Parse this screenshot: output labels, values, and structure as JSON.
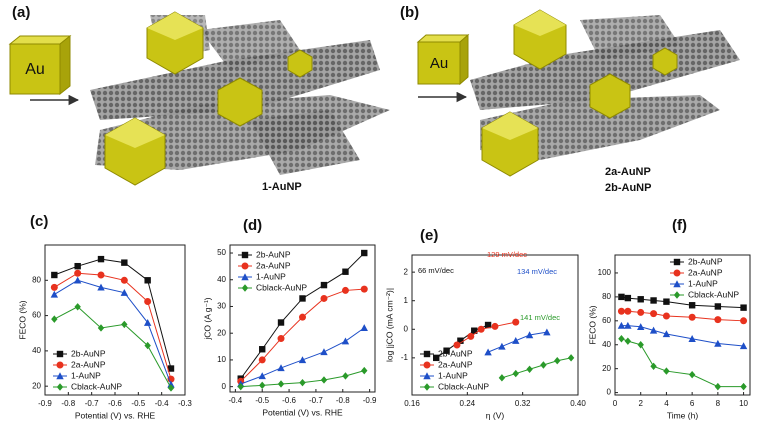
{
  "top_panels": [
    {
      "label": "(a)",
      "cube": "Au",
      "products": [
        "1-AuNP"
      ]
    },
    {
      "label": "(b)",
      "cube": "Au",
      "products": [
        "2a-AuNP",
        "2b-AuNP"
      ]
    }
  ],
  "chart_data": [
    {
      "type": "line",
      "label": "(c)",
      "xlabel": "Potential (V) vs. RHE",
      "ylabel": "FECO (%)",
      "x": [
        -0.86,
        -0.76,
        -0.66,
        -0.56,
        -0.46,
        -0.36
      ],
      "xlim": [
        -0.9,
        -0.3
      ],
      "xticks": [
        -0.9,
        -0.8,
        -0.7,
        -0.6,
        -0.5,
        -0.4,
        -0.3
      ],
      "ylim": [
        15,
        100
      ],
      "yticks": [
        20,
        40,
        60,
        80
      ],
      "legend": "lower left",
      "series": [
        {
          "name": "2b-AuNP",
          "color": "#111111",
          "marker": "square",
          "values": [
            83,
            88,
            92,
            90,
            80,
            30
          ]
        },
        {
          "name": "2a-AuNP",
          "color": "#e8321e",
          "marker": "circle",
          "values": [
            76,
            84,
            83,
            80,
            68,
            24
          ]
        },
        {
          "name": "1-AuNP",
          "color": "#1e4fc8",
          "marker": "triangle",
          "values": [
            72,
            80,
            76,
            73,
            56,
            21
          ]
        },
        {
          "name": "Cblack-AuNP",
          "color": "#2a9a2a",
          "marker": "diamond",
          "values": [
            58,
            65,
            53,
            55,
            43,
            19
          ]
        }
      ]
    },
    {
      "type": "line",
      "label": "(d)",
      "xlabel": "Potential (V) vs. RHE",
      "ylabel": "jCO (A g⁻¹)",
      "x": [
        -0.42,
        -0.5,
        -0.57,
        -0.65,
        -0.73,
        -0.81,
        -0.88
      ],
      "xlim": [
        -0.38,
        -0.92
      ],
      "xticks": [
        -0.4,
        -0.5,
        -0.6,
        -0.7,
        -0.8,
        -0.9
      ],
      "ylim": [
        -2,
        53
      ],
      "yticks": [
        0,
        10,
        20,
        30,
        40,
        50
      ],
      "legend": "upper left",
      "series": [
        {
          "name": "2b-AuNP",
          "color": "#111111",
          "marker": "square",
          "values": [
            3,
            14,
            24,
            33,
            38,
            43,
            50
          ]
        },
        {
          "name": "2a-AuNP",
          "color": "#e8321e",
          "marker": "circle",
          "values": [
            2,
            10,
            18,
            26,
            33,
            36,
            36.5
          ]
        },
        {
          "name": "1-AuNP",
          "color": "#1e4fc8",
          "marker": "triangle",
          "values": [
            1,
            4,
            7,
            10,
            13,
            17,
            22
          ]
        },
        {
          "name": "Cblack-AuNP",
          "color": "#2a9a2a",
          "marker": "diamond",
          "values": [
            0,
            0.5,
            1,
            1.5,
            2.5,
            4,
            6
          ]
        }
      ]
    },
    {
      "type": "line",
      "label": "(e)",
      "xlabel": "η (V)",
      "ylabel": "log |jCO (mA cm⁻²)|",
      "xlim": [
        0.16,
        0.4
      ],
      "xticks": [
        0.16,
        0.24,
        0.32,
        {
          "value": 0.4,
          "label": "0.40"
        }
      ],
      "ylim": [
        -2.3,
        2.6
      ],
      "yticks": [
        -1,
        0,
        1,
        2
      ],
      "legend": "lower left",
      "annotations": [
        {
          "text": "66 mV/dec",
          "color": "#111111"
        },
        {
          "text": "129 mV/dec",
          "color": "#e8321e"
        },
        {
          "text": "134 mV/dec",
          "color": "#1e4fc8"
        },
        {
          "text": "141 mV/dec",
          "color": "#2a9a2a"
        }
      ],
      "series": [
        {
          "name": "2b-AuNP",
          "color": "#111111",
          "marker": "square",
          "x": [
            0.195,
            0.21,
            0.23,
            0.25,
            0.27
          ],
          "values": [
            -1.0,
            -0.75,
            -0.4,
            -0.05,
            0.15
          ]
        },
        {
          "name": "2a-AuNP",
          "color": "#e8321e",
          "marker": "circle",
          "x": [
            0.225,
            0.245,
            0.26,
            0.28,
            0.31
          ],
          "values": [
            -0.55,
            -0.25,
            0.0,
            0.1,
            0.25
          ]
        },
        {
          "name": "1-AuNP",
          "color": "#1e4fc8",
          "marker": "triangle",
          "x": [
            0.27,
            0.29,
            0.31,
            0.33,
            0.355
          ],
          "values": [
            -0.8,
            -0.6,
            -0.4,
            -0.2,
            -0.1
          ]
        },
        {
          "name": "Cblack-AuNP",
          "color": "#2a9a2a",
          "marker": "diamond",
          "x": [
            0.29,
            0.31,
            0.33,
            0.35,
            0.37,
            0.39
          ],
          "values": [
            -1.7,
            -1.55,
            -1.4,
            -1.25,
            -1.1,
            -1.0
          ]
        }
      ]
    },
    {
      "type": "line",
      "label": "(f)",
      "xlabel": "Time (h)",
      "ylabel": "FECO (%)",
      "x": [
        0.5,
        1,
        2,
        3,
        4,
        6,
        8,
        10
      ],
      "xlim": [
        0,
        10.5
      ],
      "xticks": [
        0,
        2,
        4,
        6,
        8,
        10
      ],
      "ylim": [
        -2,
        115
      ],
      "yticks": [
        0,
        20,
        40,
        60,
        80,
        100
      ],
      "legend": "upper right",
      "series": [
        {
          "name": "2b-AuNP",
          "color": "#111111",
          "marker": "square",
          "values": [
            80,
            79,
            78,
            77,
            76,
            73,
            72,
            71
          ]
        },
        {
          "name": "2a-AuNP",
          "color": "#e8321e",
          "marker": "circle",
          "values": [
            68,
            68,
            67,
            66,
            64,
            63,
            61,
            60
          ]
        },
        {
          "name": "1-AuNP",
          "color": "#1e4fc8",
          "marker": "triangle",
          "values": [
            56,
            56,
            55,
            52,
            49,
            45,
            41,
            39
          ]
        },
        {
          "name": "Cblack-AuNP",
          "color": "#2a9a2a",
          "marker": "diamond",
          "values": [
            45,
            43,
            40,
            22,
            18,
            15,
            5,
            5
          ]
        }
      ]
    }
  ]
}
